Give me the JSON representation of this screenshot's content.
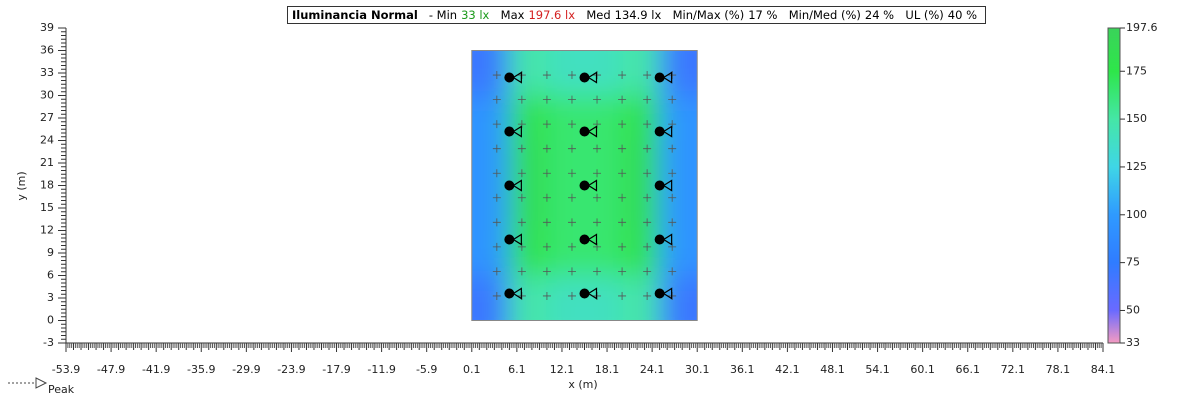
{
  "header": {
    "title": "Iluminancia  Normal",
    "min_label": "- Min",
    "min": "33 lx",
    "max_label": "Max",
    "max": "197.6 lx",
    "med_label": "Med",
    "med": "134.9 lx",
    "minmax_label": "Min/Max (%)",
    "minmax": "17 %",
    "minmed_label": "Min/Med (%)",
    "minmed": "24 %",
    "ul_label": "UL (%)",
    "ul": "40 %"
  },
  "chart_data": {
    "type": "heatmap",
    "x_label": "x (m)",
    "y_label": "y (m)",
    "xlim": [
      -53.9,
      84.1
    ],
    "xticks": [
      -53.9,
      -47.9,
      -41.9,
      -35.9,
      -29.9,
      -23.9,
      -17.9,
      -11.9,
      -5.9,
      0.1,
      6.1,
      12.1,
      18.1,
      24.1,
      30.1,
      36.1,
      42.1,
      48.1,
      54.1,
      60.1,
      66.1,
      72.1,
      78.1,
      84.1
    ],
    "ylim": [
      -3,
      39
    ],
    "yticks": [
      -3,
      0,
      3,
      6,
      9,
      12,
      15,
      18,
      21,
      24,
      27,
      30,
      33,
      36,
      39
    ],
    "room": {
      "xlim": [
        0.1,
        30.1
      ],
      "ylim": [
        0,
        36
      ]
    },
    "field": {
      "x": [
        2.6,
        7.6,
        12.6,
        17.6,
        22.6,
        27.6
      ],
      "y": [
        3,
        9,
        15,
        21,
        27,
        33
      ],
      "values": [
        [
          70,
          150,
          140,
          140,
          150,
          70
        ],
        [
          95,
          180,
          165,
          165,
          180,
          95
        ],
        [
          95,
          185,
          165,
          165,
          185,
          95
        ],
        [
          95,
          185,
          165,
          165,
          185,
          95
        ],
        [
          95,
          180,
          165,
          165,
          180,
          95
        ],
        [
          70,
          150,
          140,
          140,
          150,
          70
        ]
      ]
    },
    "luminaires": {
      "x": [
        5.1,
        15.1,
        25.1,
        5.1,
        15.1,
        25.1,
        5.1,
        15.1,
        25.1,
        5.1,
        15.1,
        25.1,
        5.1,
        15.1,
        25.1
      ],
      "y": [
        3.6,
        3.6,
        3.6,
        10.8,
        10.8,
        10.8,
        18,
        18,
        18,
        25.2,
        25.2,
        25.2,
        32.4,
        32.4,
        32.4
      ]
    },
    "colorbar": {
      "zlim": [
        33,
        197.6
      ],
      "ticks": [
        33,
        50,
        75,
        100,
        125,
        150,
        175,
        197.6
      ],
      "colorscale": [
        [
          33,
          "#f49ac1"
        ],
        [
          50,
          "#6a6aff"
        ],
        [
          75,
          "#2f7cff"
        ],
        [
          100,
          "#2f9aff"
        ],
        [
          125,
          "#3fd6e6"
        ],
        [
          150,
          "#45e6a6"
        ],
        [
          175,
          "#2ee64a"
        ],
        [
          197.6,
          "#3ad35a"
        ]
      ]
    },
    "legend": {
      "label": "Peak"
    }
  }
}
